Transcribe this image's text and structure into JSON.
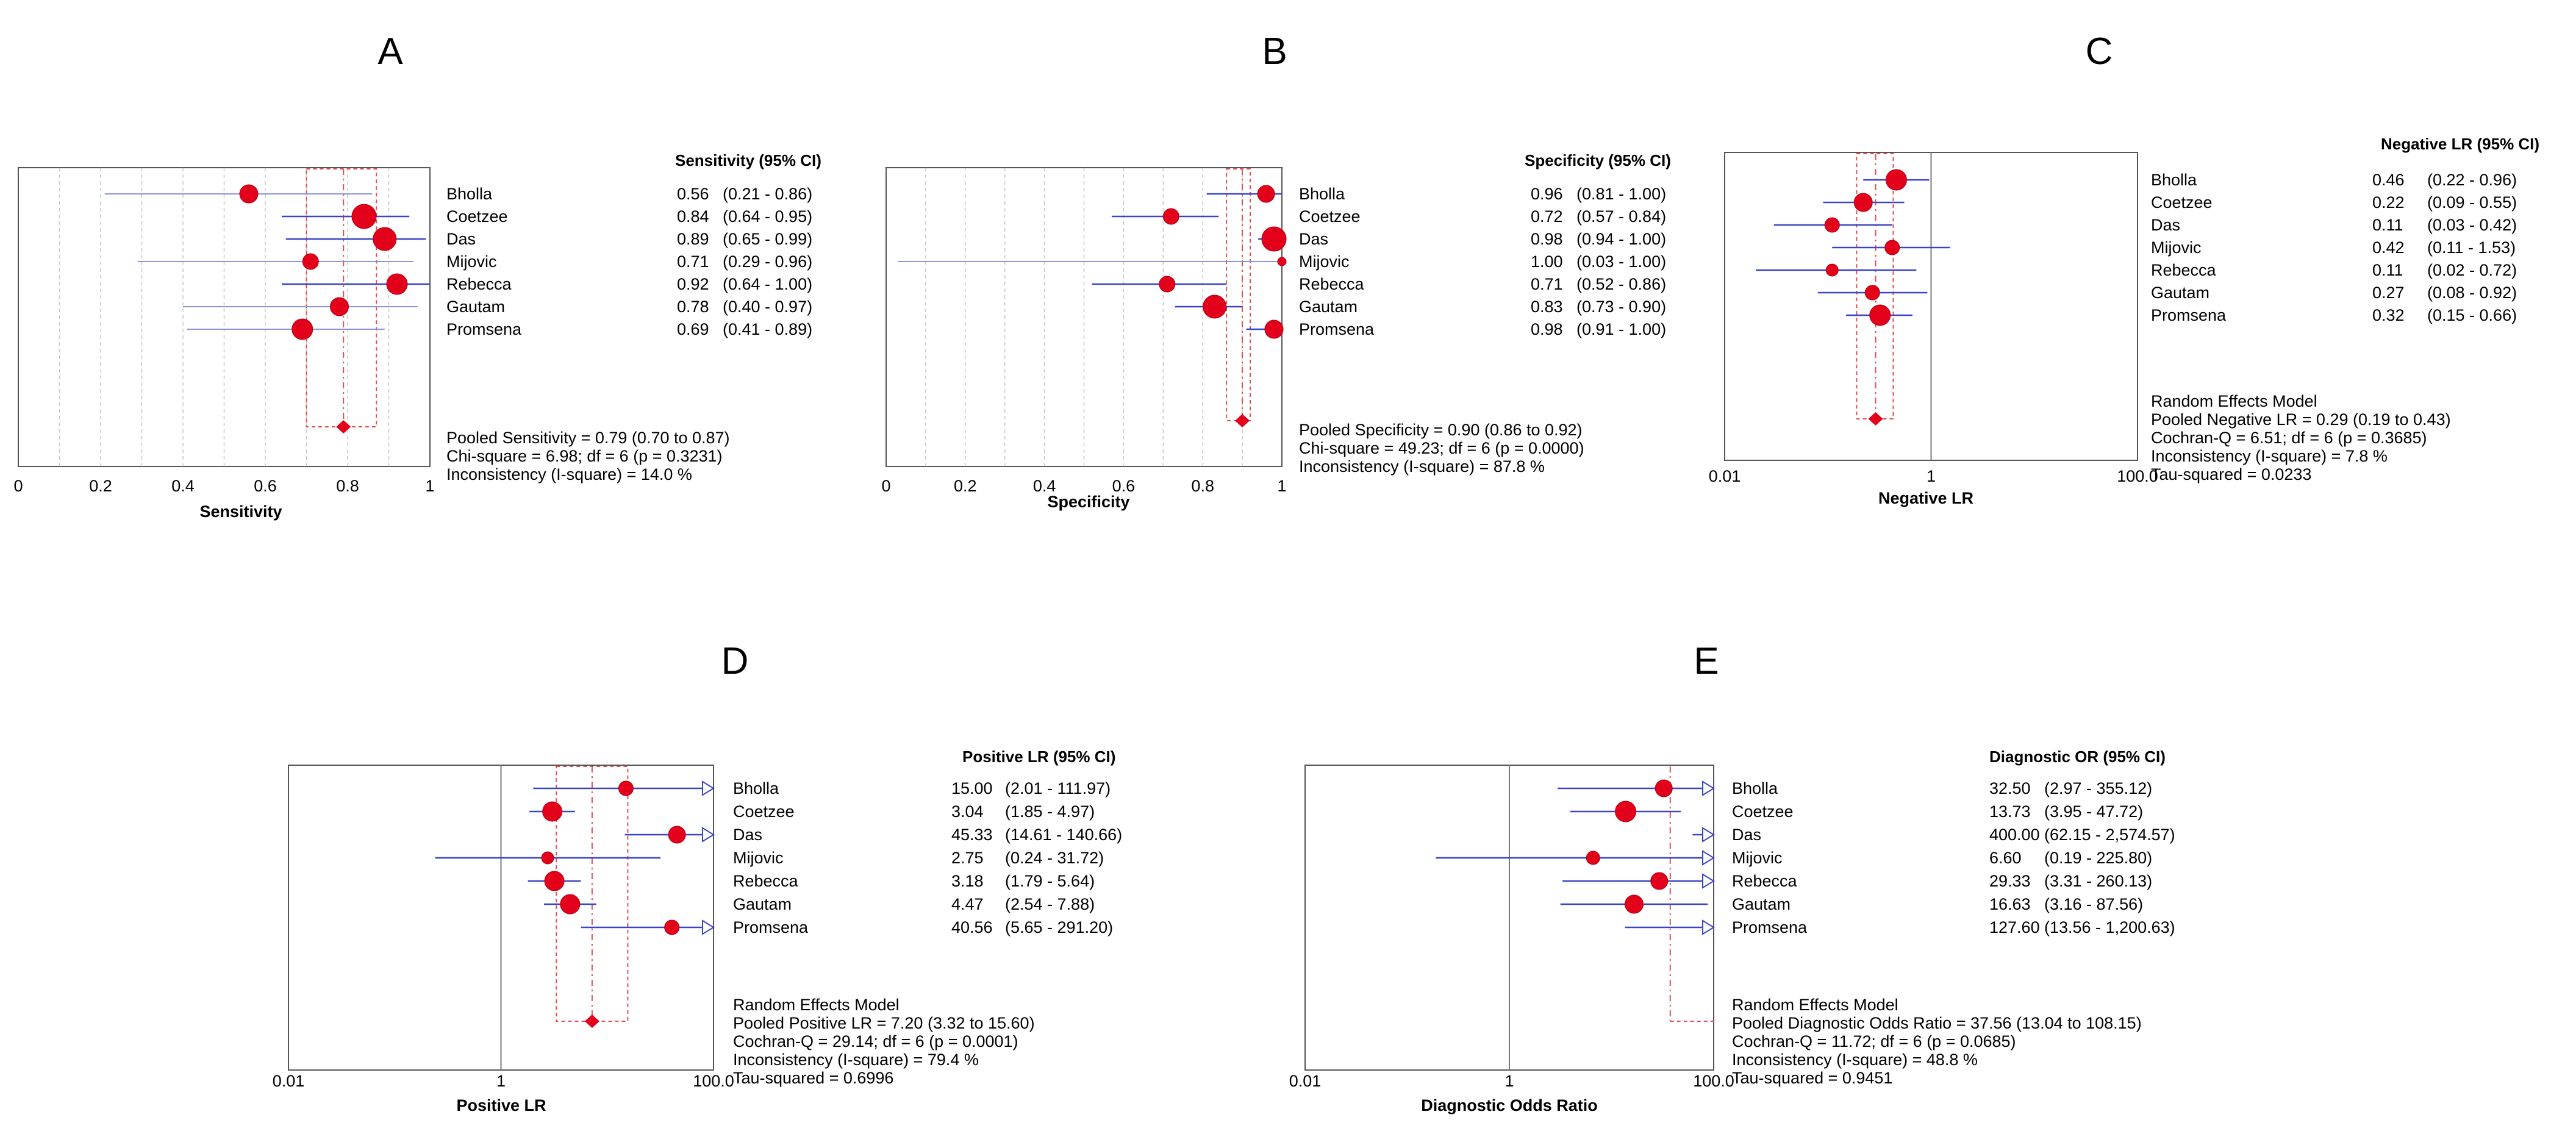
{
  "chart_data": [
    {
      "id": "A",
      "type": "forest",
      "panel_label": "A",
      "scale": "linear",
      "xlim": [
        0,
        1
      ],
      "ticks": [
        0,
        0.2,
        0.4,
        0.6,
        0.8,
        1
      ],
      "tick_labels": [
        "0",
        "0.2",
        "0.4",
        "0.6",
        "0.8",
        "1"
      ],
      "xlabel": "Sensitivity",
      "header": "Sensitivity (95% CI)",
      "studies": [
        {
          "name": "Bholla",
          "est": 0.56,
          "lo": 0.21,
          "hi": 0.86,
          "est_text": "0.56",
          "ci_text": "(0.21 - 0.86)",
          "size": 15
        },
        {
          "name": "Coetzee",
          "est": 0.84,
          "lo": 0.64,
          "hi": 0.95,
          "est_text": "0.84",
          "ci_text": "(0.64 - 0.95)",
          "size": 20
        },
        {
          "name": "Das",
          "est": 0.89,
          "lo": 0.65,
          "hi": 0.99,
          "est_text": "0.89",
          "ci_text": "(0.65 - 0.99)",
          "size": 19
        },
        {
          "name": "Mijovic",
          "est": 0.71,
          "lo": 0.29,
          "hi": 0.96,
          "est_text": "0.71",
          "ci_text": "(0.29 - 0.96)",
          "size": 13
        },
        {
          "name": "Rebecca",
          "est": 0.92,
          "lo": 0.64,
          "hi": 1.0,
          "est_text": "0.92",
          "ci_text": "(0.64 - 1.00)",
          "size": 17
        },
        {
          "name": "Gautam",
          "est": 0.78,
          "lo": 0.4,
          "hi": 0.97,
          "est_text": "0.78",
          "ci_text": "(0.40 - 0.97)",
          "size": 15
        },
        {
          "name": "Promsena",
          "est": 0.69,
          "lo": 0.41,
          "hi": 0.89,
          "est_text": "0.69",
          "ci_text": "(0.41 - 0.89)",
          "size": 17
        }
      ],
      "pooled": {
        "est": 0.79,
        "lo": 0.7,
        "hi": 0.87
      },
      "summary": [
        "Pooled Sensitivity = 0.79 (0.70 to 0.87)",
        "Chi-square = 6.98; df =  6 (p = 0.3231)",
        "Inconsistency (I-square) = 14.0 %"
      ]
    },
    {
      "id": "B",
      "type": "forest",
      "panel_label": "B",
      "scale": "linear",
      "xlim": [
        0,
        1
      ],
      "ticks": [
        0,
        0.2,
        0.4,
        0.6,
        0.8,
        1
      ],
      "tick_labels": [
        "0",
        "0.2",
        "0.4",
        "0.6",
        "0.8",
        "1"
      ],
      "xlabel": "Specificity",
      "header": "Specificity (95% CI)",
      "studies": [
        {
          "name": "Bholla",
          "est": 0.96,
          "lo": 0.81,
          "hi": 1.0,
          "est_text": "0.96",
          "ci_text": "(0.81 - 1.00)",
          "size": 14
        },
        {
          "name": "Coetzee",
          "est": 0.72,
          "lo": 0.57,
          "hi": 0.84,
          "est_text": "0.72",
          "ci_text": "(0.57 - 0.84)",
          "size": 13
        },
        {
          "name": "Das",
          "est": 0.98,
          "lo": 0.94,
          "hi": 1.0,
          "est_text": "0.98",
          "ci_text": "(0.94 - 1.00)",
          "size": 20
        },
        {
          "name": "Mijovic",
          "est": 1.0,
          "lo": 0.03,
          "hi": 1.0,
          "est_text": "1.00",
          "ci_text": "(0.03 - 1.00)",
          "size": 7
        },
        {
          "name": "Rebecca",
          "est": 0.71,
          "lo": 0.52,
          "hi": 0.86,
          "est_text": "0.71",
          "ci_text": "(0.52 - 0.86)",
          "size": 13
        },
        {
          "name": "Gautam",
          "est": 0.83,
          "lo": 0.73,
          "hi": 0.9,
          "est_text": "0.83",
          "ci_text": "(0.73 - 0.90)",
          "size": 19
        },
        {
          "name": "Promsena",
          "est": 0.98,
          "lo": 0.91,
          "hi": 1.0,
          "est_text": "0.98",
          "ci_text": "(0.91 - 1.00)",
          "size": 15
        }
      ],
      "pooled": {
        "est": 0.9,
        "lo": 0.86,
        "hi": 0.92
      },
      "summary": [
        "Pooled Specificity = 0.90 (0.86 to 0.92)",
        "Chi-square = 49.23; df =  6 (p = 0.0000)",
        "Inconsistency (I-square) = 87.8 %"
      ]
    },
    {
      "id": "C",
      "type": "forest",
      "panel_label": "C",
      "scale": "log",
      "xlim": [
        0.01,
        100
      ],
      "ticks": [
        0.01,
        1,
        100
      ],
      "tick_labels": [
        "0.01",
        "1",
        "100.0"
      ],
      "ref": 1,
      "xlabel": "Negative LR",
      "header": "Negative LR (95%  CI)",
      "studies": [
        {
          "name": "Bholla",
          "est": 0.46,
          "lo": 0.22,
          "hi": 0.96,
          "est_text": "0.46",
          "ci_text": "(0.22 - 0.96)",
          "size": 17
        },
        {
          "name": "Coetzee",
          "est": 0.22,
          "lo": 0.09,
          "hi": 0.55,
          "est_text": "0.22",
          "ci_text": "(0.09 - 0.55)",
          "size": 15
        },
        {
          "name": "Das",
          "est": 0.11,
          "lo": 0.03,
          "hi": 0.42,
          "est_text": "0.11",
          "ci_text": "(0.03 - 0.42)",
          "size": 12
        },
        {
          "name": "Mijovic",
          "est": 0.42,
          "lo": 0.11,
          "hi": 1.53,
          "est_text": "0.42",
          "ci_text": "(0.11 - 1.53)",
          "size": 12
        },
        {
          "name": "Rebecca",
          "est": 0.11,
          "lo": 0.02,
          "hi": 0.72,
          "est_text": "0.11",
          "ci_text": "(0.02 - 0.72)",
          "size": 10
        },
        {
          "name": "Gautam",
          "est": 0.27,
          "lo": 0.08,
          "hi": 0.92,
          "est_text": "0.27",
          "ci_text": "(0.08 - 0.92)",
          "size": 12
        },
        {
          "name": "Promsena",
          "est": 0.32,
          "lo": 0.15,
          "hi": 0.66,
          "est_text": "0.32",
          "ci_text": "(0.15 - 0.66)",
          "size": 17
        }
      ],
      "pooled": {
        "est": 0.29,
        "lo": 0.19,
        "hi": 0.43
      },
      "summary": [
        "Random Effects Model",
        "Pooled Negative LR = 0.29 (0.19 to 0.43)",
        "Cochran-Q = 6.51; df =  6 (p = 0.3685)",
        "Inconsistency (I-square) = 7.8 %",
        "Tau-squared = 0.0233"
      ]
    },
    {
      "id": "D",
      "type": "forest",
      "panel_label": "D",
      "scale": "log",
      "xlim": [
        0.01,
        100
      ],
      "ticks": [
        0.01,
        1,
        100
      ],
      "tick_labels": [
        "0.01",
        "1",
        "100.0"
      ],
      "ref": 1,
      "xlabel": "Positive LR",
      "header": "Positive LR (95%  CI)",
      "studies": [
        {
          "name": "Bholla",
          "est": 15.0,
          "lo": 2.01,
          "hi": 111.97,
          "est_text": "15.00",
          "ci_text": "(2.01 - 111.97)",
          "size": 12
        },
        {
          "name": "Coetzee",
          "est": 3.04,
          "lo": 1.85,
          "hi": 4.97,
          "est_text": "3.04",
          "ci_text": "(1.85 - 4.97)",
          "size": 16
        },
        {
          "name": "Das",
          "est": 45.33,
          "lo": 14.61,
          "hi": 140.66,
          "est_text": "45.33",
          "ci_text": "(14.61 - 140.66)",
          "size": 14
        },
        {
          "name": "Mijovic",
          "est": 2.75,
          "lo": 0.24,
          "hi": 31.72,
          "est_text": "2.75",
          "ci_text": "(0.24 - 31.72)",
          "size": 10
        },
        {
          "name": "Rebecca",
          "est": 3.18,
          "lo": 1.79,
          "hi": 5.64,
          "est_text": "3.18",
          "ci_text": "(1.79 - 5.64)",
          "size": 16
        },
        {
          "name": "Gautam",
          "est": 4.47,
          "lo": 2.54,
          "hi": 7.88,
          "est_text": "4.47",
          "ci_text": "(2.54 - 7.88)",
          "size": 16
        },
        {
          "name": "Promsena",
          "est": 40.56,
          "lo": 5.65,
          "hi": 291.2,
          "est_text": "40.56",
          "ci_text": "(5.65 - 291.20)",
          "size": 12
        }
      ],
      "pooled": {
        "est": 7.2,
        "lo": 3.32,
        "hi": 15.6
      },
      "summary": [
        "Random Effects Model",
        "Pooled Positive LR = 7.20 (3.32 to 15.60)",
        "Cochran-Q = 29.14; df =  6 (p = 0.0001)",
        "Inconsistency (I-square) = 79.4 %",
        "Tau-squared = 0.6996"
      ]
    },
    {
      "id": "E",
      "type": "forest",
      "panel_label": "E",
      "scale": "log",
      "xlim": [
        0.01,
        100
      ],
      "ticks": [
        0.01,
        1,
        100
      ],
      "tick_labels": [
        "0.01",
        "1",
        "100.0"
      ],
      "ref": 1,
      "xlabel": "Diagnostic Odds Ratio",
      "header": "Diagnostic OR (95% CI)",
      "studies": [
        {
          "name": "Bholla",
          "est": 32.5,
          "lo": 2.97,
          "hi": 355.12,
          "est_text": "32.50",
          "ci_text": "(2.97 - 355.12)",
          "size": 14
        },
        {
          "name": "Coetzee",
          "est": 13.73,
          "lo": 3.95,
          "hi": 47.72,
          "est_text": "13.73",
          "ci_text": "(3.95 - 47.72)",
          "size": 17
        },
        {
          "name": "Das",
          "est": 400.0,
          "lo": 62.15,
          "hi": 2574.57,
          "est_text": "400.00",
          "ci_text": "(62.15 - 2,574.57)",
          "size": 0
        },
        {
          "name": "Mijovic",
          "est": 6.6,
          "lo": 0.19,
          "hi": 225.8,
          "est_text": "6.60",
          "ci_text": "(0.19 - 225.80)",
          "size": 11
        },
        {
          "name": "Rebecca",
          "est": 29.33,
          "lo": 3.31,
          "hi": 260.13,
          "est_text": "29.33",
          "ci_text": "(3.31 - 260.13)",
          "size": 14
        },
        {
          "name": "Gautam",
          "est": 16.63,
          "lo": 3.16,
          "hi": 87.56,
          "est_text": "16.63",
          "ci_text": "(3.16 - 87.56)",
          "size": 15
        },
        {
          "name": "Promsena",
          "est": 127.6,
          "lo": 13.56,
          "hi": 1200.63,
          "est_text": "127.60",
          "ci_text": "(13.56 - 1,200.63)",
          "size": 0
        }
      ],
      "pooled": {
        "est": 37.56,
        "lo": 13.04,
        "hi": 108.15
      },
      "summary": [
        "Random Effects Model",
        "Pooled Diagnostic Odds Ratio = 37.56 (13.04 to 108.15)",
        "Cochran-Q = 11.72; df =  6 (p = 0.0685)",
        "Inconsistency (I-square) = 48.8 %",
        "Tau-squared = 0.9451"
      ]
    }
  ],
  "colors": {
    "point": "#e3001b",
    "ci": "#3a44c8",
    "pooled": "#e05050"
  }
}
